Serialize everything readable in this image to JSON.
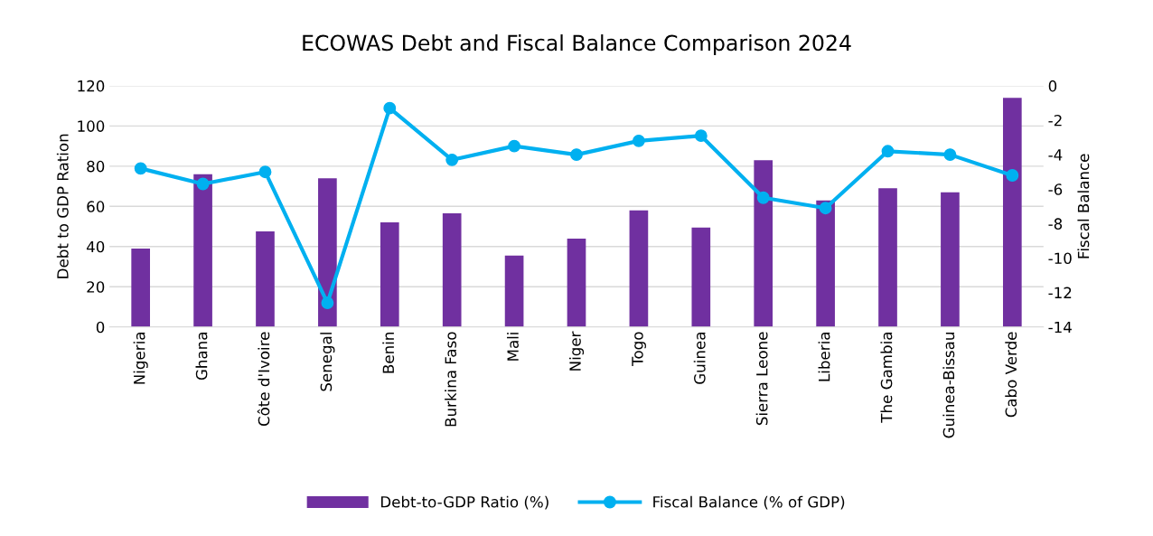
{
  "chart_data": {
    "type": "bar",
    "title": "ECOWAS Debt and Fiscal Balance Comparison 2024",
    "ylabel": "Debt to GDP Ration",
    "y2label": "Fiscal Balance",
    "categories": [
      "Nigeria",
      "Ghana",
      "Côte d'Ivoire",
      "Senegal",
      "Benin",
      "Burkina Faso",
      "Mali",
      "Niger",
      "Togo",
      "Guinea",
      "Sierra Leone",
      "Liberia",
      "The Gambia",
      "Guinea-Bissau",
      "Cabo Verde"
    ],
    "series": [
      {
        "name": "Debt-to-GDP Ratio (%)",
        "color": "#7030a0",
        "values": [
          39,
          76,
          47.5,
          74,
          52,
          56.5,
          35.5,
          44,
          58,
          49.5,
          83,
          63,
          69,
          67,
          114
        ]
      },
      {
        "name": "Fiscal Balance (% of GDP)",
        "type": "line",
        "axis": "y2",
        "color": "#00b0f0",
        "marker": "circle",
        "values": [
          -4.8,
          -5.7,
          -5.0,
          -12.6,
          -1.3,
          -4.3,
          -3.5,
          -4.0,
          -3.2,
          -2.9,
          -6.5,
          -7.1,
          -3.8,
          -4.0,
          -5.2
        ]
      }
    ],
    "ylim": [
      0,
      120
    ],
    "yticks": [
      0,
      20,
      40,
      60,
      80,
      100,
      120
    ],
    "y2lim": [
      -14,
      0
    ],
    "y2ticks": [
      -14,
      -12,
      -10,
      -8,
      -6,
      -4,
      -2,
      0
    ],
    "grid": "y",
    "legend": "bottom"
  }
}
